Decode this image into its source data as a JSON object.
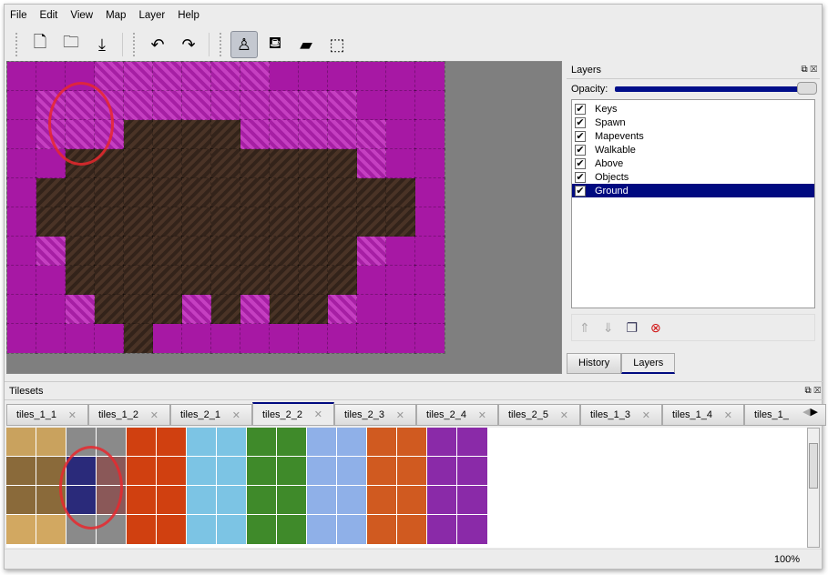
{
  "menu": [
    "File",
    "Edit",
    "View",
    "Map",
    "Layer",
    "Help"
  ],
  "toolbar": [
    {
      "icon": "new-file-icon",
      "glyph": "🗋"
    },
    {
      "icon": "open-folder-icon",
      "glyph": "🗀"
    },
    {
      "icon": "save-icon",
      "glyph": "⤓"
    },
    {
      "icon": "undo-icon",
      "glyph": "↶"
    },
    {
      "icon": "redo-icon",
      "glyph": "↷"
    },
    {
      "icon": "stamp-brush-icon",
      "glyph": "♙",
      "active": true
    },
    {
      "icon": "bucket-fill-icon",
      "glyph": "⛾"
    },
    {
      "icon": "eraser-icon",
      "glyph": "▰"
    },
    {
      "icon": "rectangle-select-icon",
      "glyph": "⬚"
    }
  ],
  "layers_panel": {
    "title": "Layers",
    "opacity_label": "Opacity:",
    "opacity": 100,
    "layers": [
      {
        "name": "Keys",
        "visible": true
      },
      {
        "name": "Spawn",
        "visible": true
      },
      {
        "name": "Mapevents",
        "visible": true
      },
      {
        "name": "Walkable",
        "visible": true
      },
      {
        "name": "Above",
        "visible": true
      },
      {
        "name": "Objects",
        "visible": true
      },
      {
        "name": "Ground",
        "visible": true,
        "selected": true
      }
    ],
    "buttons": [
      "raise-layer-icon",
      "lower-layer-icon",
      "duplicate-layer-icon",
      "remove-layer-icon"
    ]
  },
  "panel_tabs": [
    {
      "label": "History"
    },
    {
      "label": "Layers",
      "active": true
    }
  ],
  "tilesets": {
    "title": "Tilesets",
    "tabs": [
      "tiles_1_1",
      "tiles_1_2",
      "tiles_2_1",
      "tiles_2_2",
      "tiles_2_3",
      "tiles_2_4",
      "tiles_2_5",
      "tiles_1_3",
      "tiles_1_4",
      "tiles_1_"
    ],
    "active_tab": "tiles_2_2"
  },
  "colors": {
    "selection": "#000a80",
    "magenta": "#a718a4",
    "dirt": "#3d2a1f",
    "highlight": "#e8282e"
  },
  "status": {
    "zoom": "100%"
  }
}
